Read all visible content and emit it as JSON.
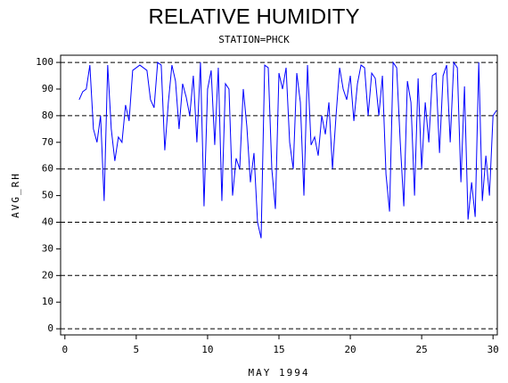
{
  "chart_data": {
    "type": "line",
    "title": "RELATIVE HUMIDITY",
    "subtitle": "STATION=PHCK",
    "x_label": "MAY 1994",
    "y_label": "AVG_RH",
    "xlim": [
      -0.3,
      30.3
    ],
    "ylim": [
      -2.3,
      102.7
    ],
    "xticks": [
      0,
      5,
      10,
      15,
      20,
      25,
      30
    ],
    "yticks": [
      0,
      10,
      20,
      30,
      40,
      50,
      60,
      70,
      80,
      90,
      100
    ],
    "ygrid": [
      0,
      20,
      40,
      60,
      80,
      100
    ],
    "x": [
      1,
      1.25,
      1.5,
      1.75,
      2,
      2.25,
      2.5,
      2.75,
      3,
      3.25,
      3.5,
      3.75,
      4,
      4.25,
      4.5,
      4.75,
      5,
      5.25,
      5.5,
      5.75,
      6,
      6.25,
      6.5,
      6.75,
      7,
      7.25,
      7.5,
      7.75,
      8,
      8.25,
      8.5,
      8.75,
      9,
      9.25,
      9.5,
      9.75,
      10,
      10.25,
      10.5,
      10.75,
      11,
      11.25,
      11.5,
      11.75,
      12,
      12.25,
      12.5,
      12.75,
      13,
      13.25,
      13.5,
      13.75,
      14,
      14.25,
      14.5,
      14.75,
      15,
      15.25,
      15.5,
      15.75,
      16,
      16.25,
      16.5,
      16.75,
      17,
      17.25,
      17.5,
      17.75,
      18,
      18.25,
      18.5,
      18.75,
      19,
      19.25,
      19.5,
      19.75,
      20,
      20.25,
      20.5,
      20.75,
      21,
      21.25,
      21.5,
      21.75,
      22,
      22.25,
      22.5,
      22.75,
      23,
      23.25,
      23.5,
      23.75,
      24,
      24.25,
      24.5,
      24.75,
      25,
      25.25,
      25.5,
      25.75,
      26,
      26.25,
      26.5,
      26.75,
      27,
      27.25,
      27.5,
      27.75,
      28,
      28.25,
      28.5,
      28.75,
      29,
      29.25,
      29.5,
      29.75,
      30,
      30.25
    ],
    "series": [
      {
        "name": "AVG_RH",
        "color": "#0000ff",
        "values": [
          86,
          89,
          90,
          99,
          75,
          70,
          80,
          48,
          99,
          75,
          63,
          72,
          70,
          84,
          78,
          97,
          98,
          99,
          98,
          97,
          86,
          83,
          100,
          99,
          67,
          85,
          99,
          93,
          75,
          92,
          87,
          80,
          95,
          70,
          100,
          46,
          90,
          97,
          69,
          98,
          48,
          92,
          90,
          50,
          64,
          60,
          90,
          76,
          55,
          66,
          40,
          34,
          99,
          98,
          60,
          45,
          96,
          90,
          98,
          70,
          60,
          96,
          85,
          50,
          99,
          69,
          72,
          65,
          80,
          73,
          85,
          60,
          80,
          98,
          90,
          86,
          95,
          78,
          92,
          99,
          98,
          80,
          96,
          94,
          80,
          95,
          58,
          44,
          100,
          98,
          70,
          46,
          93,
          85,
          50,
          94,
          60,
          85,
          70,
          95,
          96,
          66,
          95,
          99,
          70,
          100,
          98,
          55,
          91,
          41,
          55,
          42,
          100,
          48,
          65,
          50,
          80,
          82
        ]
      }
    ]
  }
}
